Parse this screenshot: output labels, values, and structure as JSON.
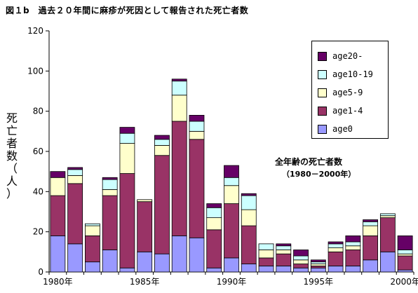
{
  "chart_data": {
    "type": "bar",
    "stacked": true,
    "title": "図１b　過去２０年間に麻疹が死因として報告された死亡者数",
    "ylabel": "死亡者数（人）",
    "xlabel": "",
    "ylim": [
      0,
      120
    ],
    "yticks": [
      0,
      20,
      40,
      60,
      80,
      100,
      120
    ],
    "x": [
      1980,
      1981,
      1982,
      1983,
      1984,
      1985,
      1986,
      1987,
      1988,
      1989,
      1990,
      1991,
      1992,
      1993,
      1994,
      1995,
      1996,
      1997,
      1998,
      1999,
      2000
    ],
    "xtick_labels": [
      "1980年",
      "1985年",
      "1990年",
      "1995年",
      "2000年"
    ],
    "xtick_years": [
      1980,
      1985,
      1990,
      1995,
      2000
    ],
    "grid": false,
    "legend_position": "top-right",
    "series": [
      {
        "name": "age0",
        "color": "#9999ff",
        "values": [
          18,
          14,
          5,
          11,
          2,
          10,
          9,
          18,
          17,
          2,
          7,
          4,
          3,
          3,
          2,
          2,
          3,
          3,
          6,
          10,
          1
        ]
      },
      {
        "name": "age1-4",
        "color": "#993366",
        "values": [
          20,
          30,
          13,
          27,
          47,
          25,
          49,
          57,
          49,
          19,
          27,
          19,
          4,
          6,
          2,
          1,
          7,
          8,
          12,
          17,
          7
        ]
      },
      {
        "name": "age5-9",
        "color": "#ffffcc",
        "values": [
          9,
          4,
          5,
          3,
          15,
          1,
          5,
          13,
          4,
          6,
          9,
          8,
          4,
          2,
          2,
          1,
          2,
          2,
          5,
          1,
          1
        ]
      },
      {
        "name": "age10-19",
        "color": "#ccffff",
        "values": [
          0,
          3,
          1,
          5,
          5,
          0,
          3,
          7,
          5,
          5,
          4,
          7,
          3,
          2,
          2,
          1,
          2,
          2,
          2,
          1,
          2
        ]
      },
      {
        "name": "age20-",
        "color": "#660066",
        "values": [
          3,
          1,
          0,
          1,
          3,
          0,
          2,
          1,
          3,
          2,
          6,
          1,
          0,
          1,
          3,
          1,
          1,
          3,
          1,
          0,
          7
        ]
      }
    ],
    "annotation": "全年齢の死亡者数",
    "annotation_sub": "（1980－2000年）"
  }
}
